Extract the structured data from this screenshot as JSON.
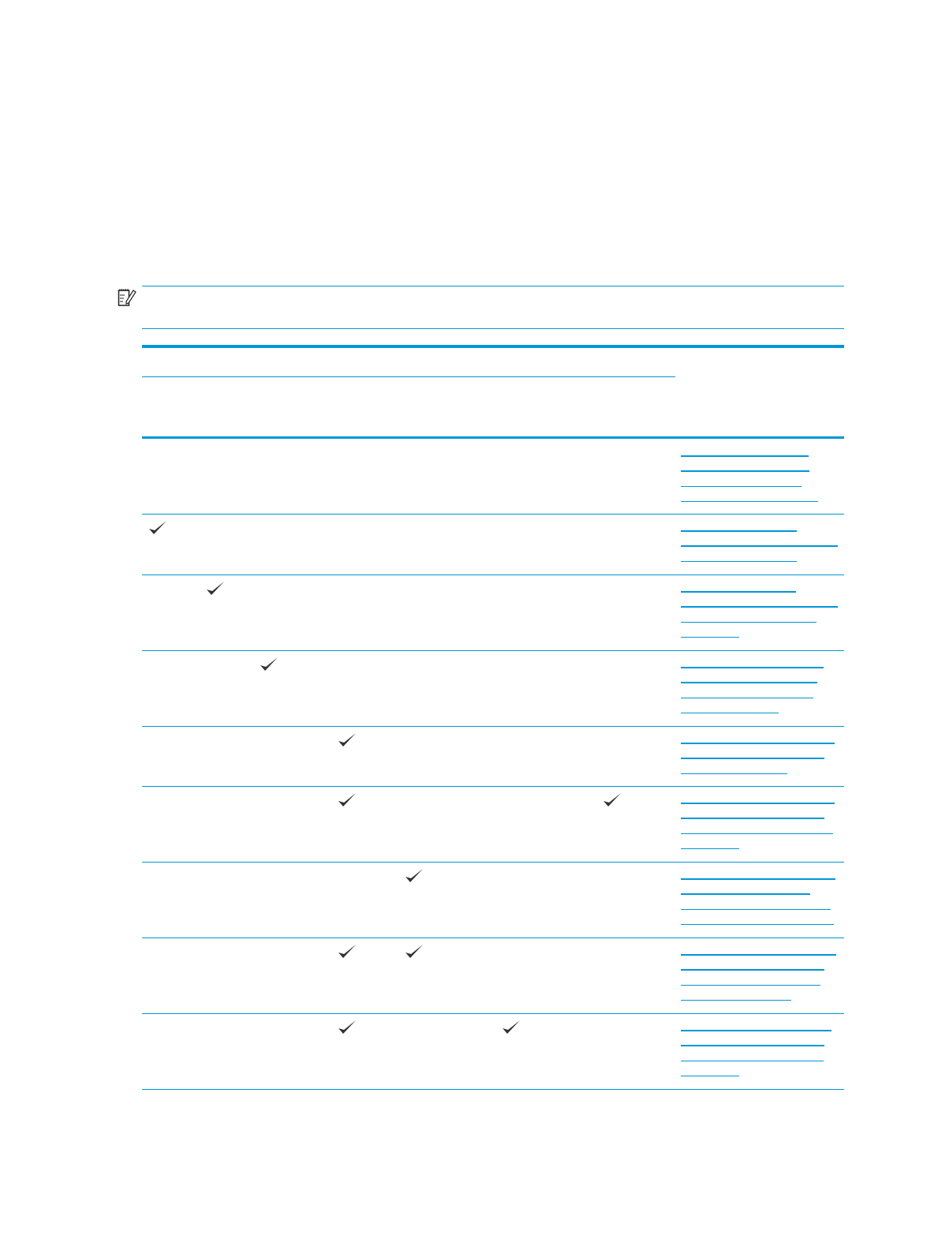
{
  "note": {
    "icon": "note-pencil-icon"
  },
  "colors": {
    "accent": "#0096d6",
    "check": "#333333"
  },
  "table": {
    "check_icon": "checkmark-icon",
    "column_count": 7,
    "rows": [
      {
        "checks": []
      },
      {
        "checks": [
          0
        ]
      },
      {
        "checks": [
          1
        ]
      },
      {
        "checks": [
          2
        ]
      },
      {
        "checks": [
          3
        ]
      },
      {
        "checks": [
          3,
          6
        ]
      },
      {
        "checks": [
          4
        ]
      },
      {
        "checks": [
          3,
          4
        ]
      },
      {
        "checks": [
          3,
          5
        ]
      }
    ]
  }
}
